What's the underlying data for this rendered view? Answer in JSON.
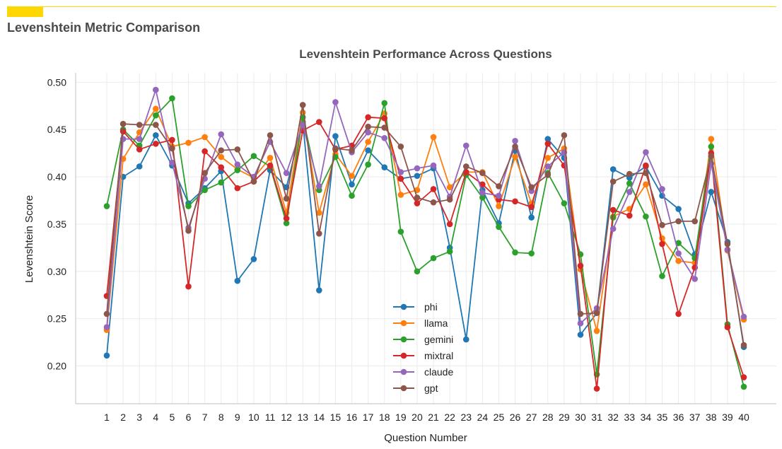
{
  "header": {
    "title": "Levenshtein Metric Comparison",
    "accent_color": "#FFD700"
  },
  "chart_data": {
    "type": "line",
    "title": "Levenshtein Performance Across Questions",
    "xlabel": "Question Number",
    "ylabel": "Levenshtein Score",
    "ylim": [
      0.16,
      0.51
    ],
    "yticks": [
      0.2,
      0.25,
      0.3,
      0.35,
      0.4,
      0.45,
      0.5
    ],
    "grid": true,
    "legend_position": "bottom-center",
    "categories": [
      1,
      2,
      3,
      4,
      5,
      6,
      7,
      8,
      9,
      10,
      11,
      12,
      13,
      14,
      15,
      16,
      17,
      18,
      19,
      20,
      21,
      22,
      23,
      24,
      25,
      26,
      27,
      28,
      29,
      30,
      31,
      32,
      33,
      34,
      35,
      36,
      37,
      38,
      39,
      40
    ],
    "series": [
      {
        "name": "phi",
        "color": "#1f77b4",
        "values": [
          0.211,
          0.4,
          0.411,
          0.444,
          0.412,
          0.372,
          0.388,
          0.406,
          0.29,
          0.313,
          0.407,
          0.389,
          0.458,
          0.28,
          0.443,
          0.392,
          0.428,
          0.41,
          0.398,
          0.401,
          0.409,
          0.325,
          0.228,
          0.386,
          0.351,
          0.428,
          0.357,
          0.44,
          0.42,
          0.233,
          0.256,
          0.408,
          0.399,
          0.411,
          0.38,
          0.366,
          0.318,
          0.384,
          0.331,
          0.22
        ]
      },
      {
        "name": "llama",
        "color": "#ff7f0e",
        "values": [
          0.238,
          0.419,
          0.447,
          0.472,
          0.432,
          0.436,
          0.442,
          0.421,
          0.408,
          0.399,
          0.42,
          0.362,
          0.468,
          0.362,
          0.424,
          0.401,
          0.437,
          0.467,
          0.381,
          0.386,
          0.442,
          0.389,
          0.405,
          0.405,
          0.369,
          0.421,
          0.372,
          0.42,
          0.43,
          0.302,
          0.237,
          0.358,
          0.366,
          0.392,
          0.335,
          0.311,
          0.309,
          0.44,
          0.322,
          0.249
        ]
      },
      {
        "name": "gemini",
        "color": "#2ca02c",
        "values": [
          0.369,
          0.45,
          0.433,
          0.465,
          0.483,
          0.369,
          0.386,
          0.394,
          0.407,
          0.422,
          0.411,
          0.351,
          0.463,
          0.386,
          0.421,
          0.38,
          0.413,
          0.478,
          0.342,
          0.3,
          0.314,
          0.321,
          0.402,
          0.378,
          0.347,
          0.32,
          0.319,
          0.404,
          0.372,
          0.318,
          0.191,
          0.357,
          0.393,
          0.358,
          0.295,
          0.33,
          0.314,
          0.432,
          0.244,
          0.178
        ]
      },
      {
        "name": "mixtral",
        "color": "#d62728",
        "values": [
          0.274,
          0.448,
          0.429,
          0.435,
          0.439,
          0.284,
          0.427,
          0.41,
          0.388,
          0.395,
          0.412,
          0.356,
          0.449,
          0.458,
          0.429,
          0.433,
          0.463,
          0.462,
          0.398,
          0.372,
          0.387,
          0.35,
          0.405,
          0.392,
          0.376,
          0.374,
          0.368,
          0.435,
          0.412,
          0.306,
          0.176,
          0.365,
          0.359,
          0.412,
          0.329,
          0.255,
          0.304,
          0.425,
          0.241,
          0.188
        ]
      },
      {
        "name": "claude",
        "color": "#9467bd",
        "values": [
          0.241,
          0.44,
          0.44,
          0.492,
          0.415,
          0.346,
          0.398,
          0.445,
          0.413,
          0.4,
          0.437,
          0.404,
          0.455,
          0.39,
          0.479,
          0.426,
          0.447,
          0.441,
          0.405,
          0.409,
          0.412,
          0.379,
          0.433,
          0.383,
          0.38,
          0.438,
          0.385,
          0.411,
          0.426,
          0.245,
          0.261,
          0.345,
          0.384,
          0.426,
          0.387,
          0.319,
          0.292,
          0.414,
          0.323,
          0.252
        ]
      },
      {
        "name": "gpt",
        "color": "#8c564b",
        "values": [
          0.255,
          0.456,
          0.455,
          0.455,
          0.43,
          0.343,
          0.404,
          0.428,
          0.429,
          0.395,
          0.444,
          0.377,
          0.476,
          0.34,
          0.43,
          0.428,
          0.453,
          0.452,
          0.432,
          0.378,
          0.373,
          0.376,
          0.411,
          0.404,
          0.39,
          0.432,
          0.389,
          0.402,
          0.444,
          0.255,
          0.256,
          0.395,
          0.403,
          0.404,
          0.349,
          0.353,
          0.353,
          0.422,
          0.329,
          0.222
        ]
      }
    ]
  }
}
